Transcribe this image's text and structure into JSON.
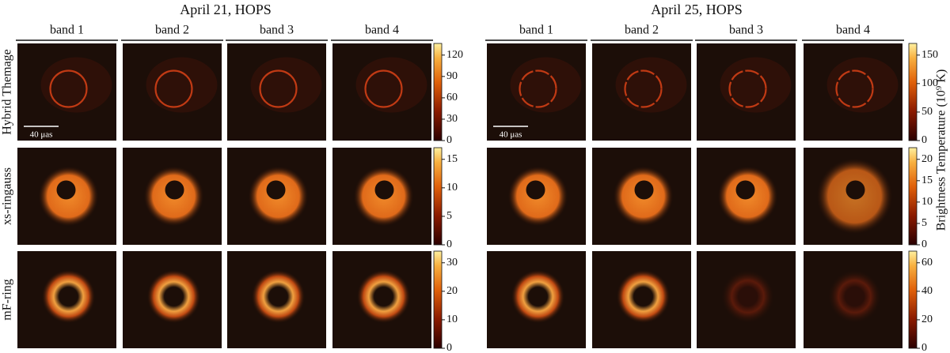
{
  "rows": [
    "Hybrid Themage",
    "xs-ringauss",
    "mF-ring"
  ],
  "colorbar_label": "Brightness Temperature (10⁹ K)",
  "left": {
    "title": "April 21, HOPS",
    "bands": [
      "band 1",
      "band 2",
      "band 3",
      "band 4"
    ],
    "scale_bar": "40 μas",
    "colorbars": [
      [
        0,
        30,
        60,
        90,
        120
      ],
      [
        0,
        5,
        10,
        15
      ],
      [
        0,
        10,
        20,
        30
      ]
    ]
  },
  "right": {
    "title": "April 25, HOPS",
    "bands": [
      "band 1",
      "band 2",
      "band 3",
      "band 4"
    ],
    "scale_bar": "40 μas",
    "colorbars": [
      [
        0,
        50,
        100,
        150
      ],
      [
        0,
        5,
        10,
        15,
        20
      ],
      [
        0,
        20,
        40,
        60
      ]
    ]
  }
}
